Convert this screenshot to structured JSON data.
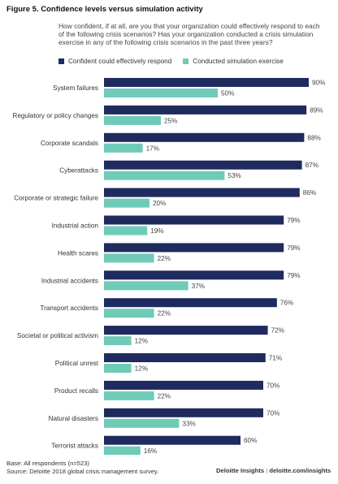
{
  "figure_title": "Figure 5. Confidence levels versus simulation activity",
  "colors": {
    "confident": "#1f2a5e",
    "simulation": "#6fcbb7"
  },
  "chart_data": {
    "type": "bar",
    "orientation": "horizontal",
    "title": "",
    "subtitle": "How confident, if at all, are you that your organization could effectively respond to each of the following crisis scenarios? Has your organization conducted a crisis simulation exercise in any of the following crisis scenarios in the past three years?",
    "xlim": [
      0,
      100
    ],
    "grid": false,
    "legend_position": "top",
    "categories": [
      "System failures",
      "Regulatory or policy changes",
      "Corporate scandals",
      "Cyberattacks",
      "Corporate or strategic failure",
      "Industrial action",
      "Health scares",
      "Industrial accidents",
      "Transport accidents",
      "Societal or political activism",
      "Political unrest",
      "Product recalls",
      "Natural disasters",
      "Terrorist attacks"
    ],
    "series": [
      {
        "name": "Confident could effectively respond",
        "values": [
          90,
          89,
          88,
          87,
          86,
          79,
          79,
          79,
          76,
          72,
          71,
          70,
          70,
          60
        ]
      },
      {
        "name": "Conducted simulation exercise",
        "values": [
          50,
          25,
          17,
          53,
          20,
          19,
          22,
          37,
          22,
          12,
          12,
          22,
          33,
          16
        ]
      }
    ],
    "value_suffix": "%"
  },
  "footer": {
    "base": "Base: All respondents (n=523)",
    "source": "Source: Deloitte 2018 global crisis management survey.",
    "brand": "Deloitte Insights",
    "separator": "|",
    "url": "deloitte.com/insights"
  }
}
